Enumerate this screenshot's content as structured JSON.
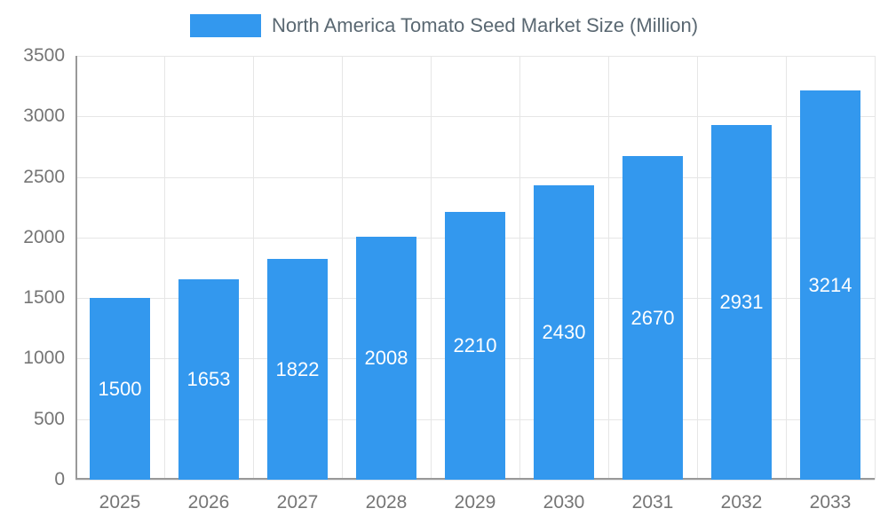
{
  "chart_data": {
    "type": "bar",
    "title": "North America Tomato Seed Market Size (Million)",
    "categories": [
      "2025",
      "2026",
      "2027",
      "2028",
      "2029",
      "2030",
      "2031",
      "2032",
      "2033"
    ],
    "values": [
      1500,
      1653,
      1822,
      2008,
      2210,
      2430,
      2670,
      2931,
      3214
    ],
    "xlabel": "",
    "ylabel": "",
    "ylim": [
      0,
      3500
    ],
    "yticks": [
      0,
      500,
      1000,
      1500,
      2000,
      2500,
      3000,
      3500
    ],
    "grid": true,
    "legend_position": "top-center",
    "bar_color": "#3398ee",
    "value_label_color": "#ffffff",
    "title_color": "#5a6872",
    "tick_label_color": "#757575"
  },
  "legend": {
    "label": "North America Tomato Seed Market Size (Million)"
  }
}
